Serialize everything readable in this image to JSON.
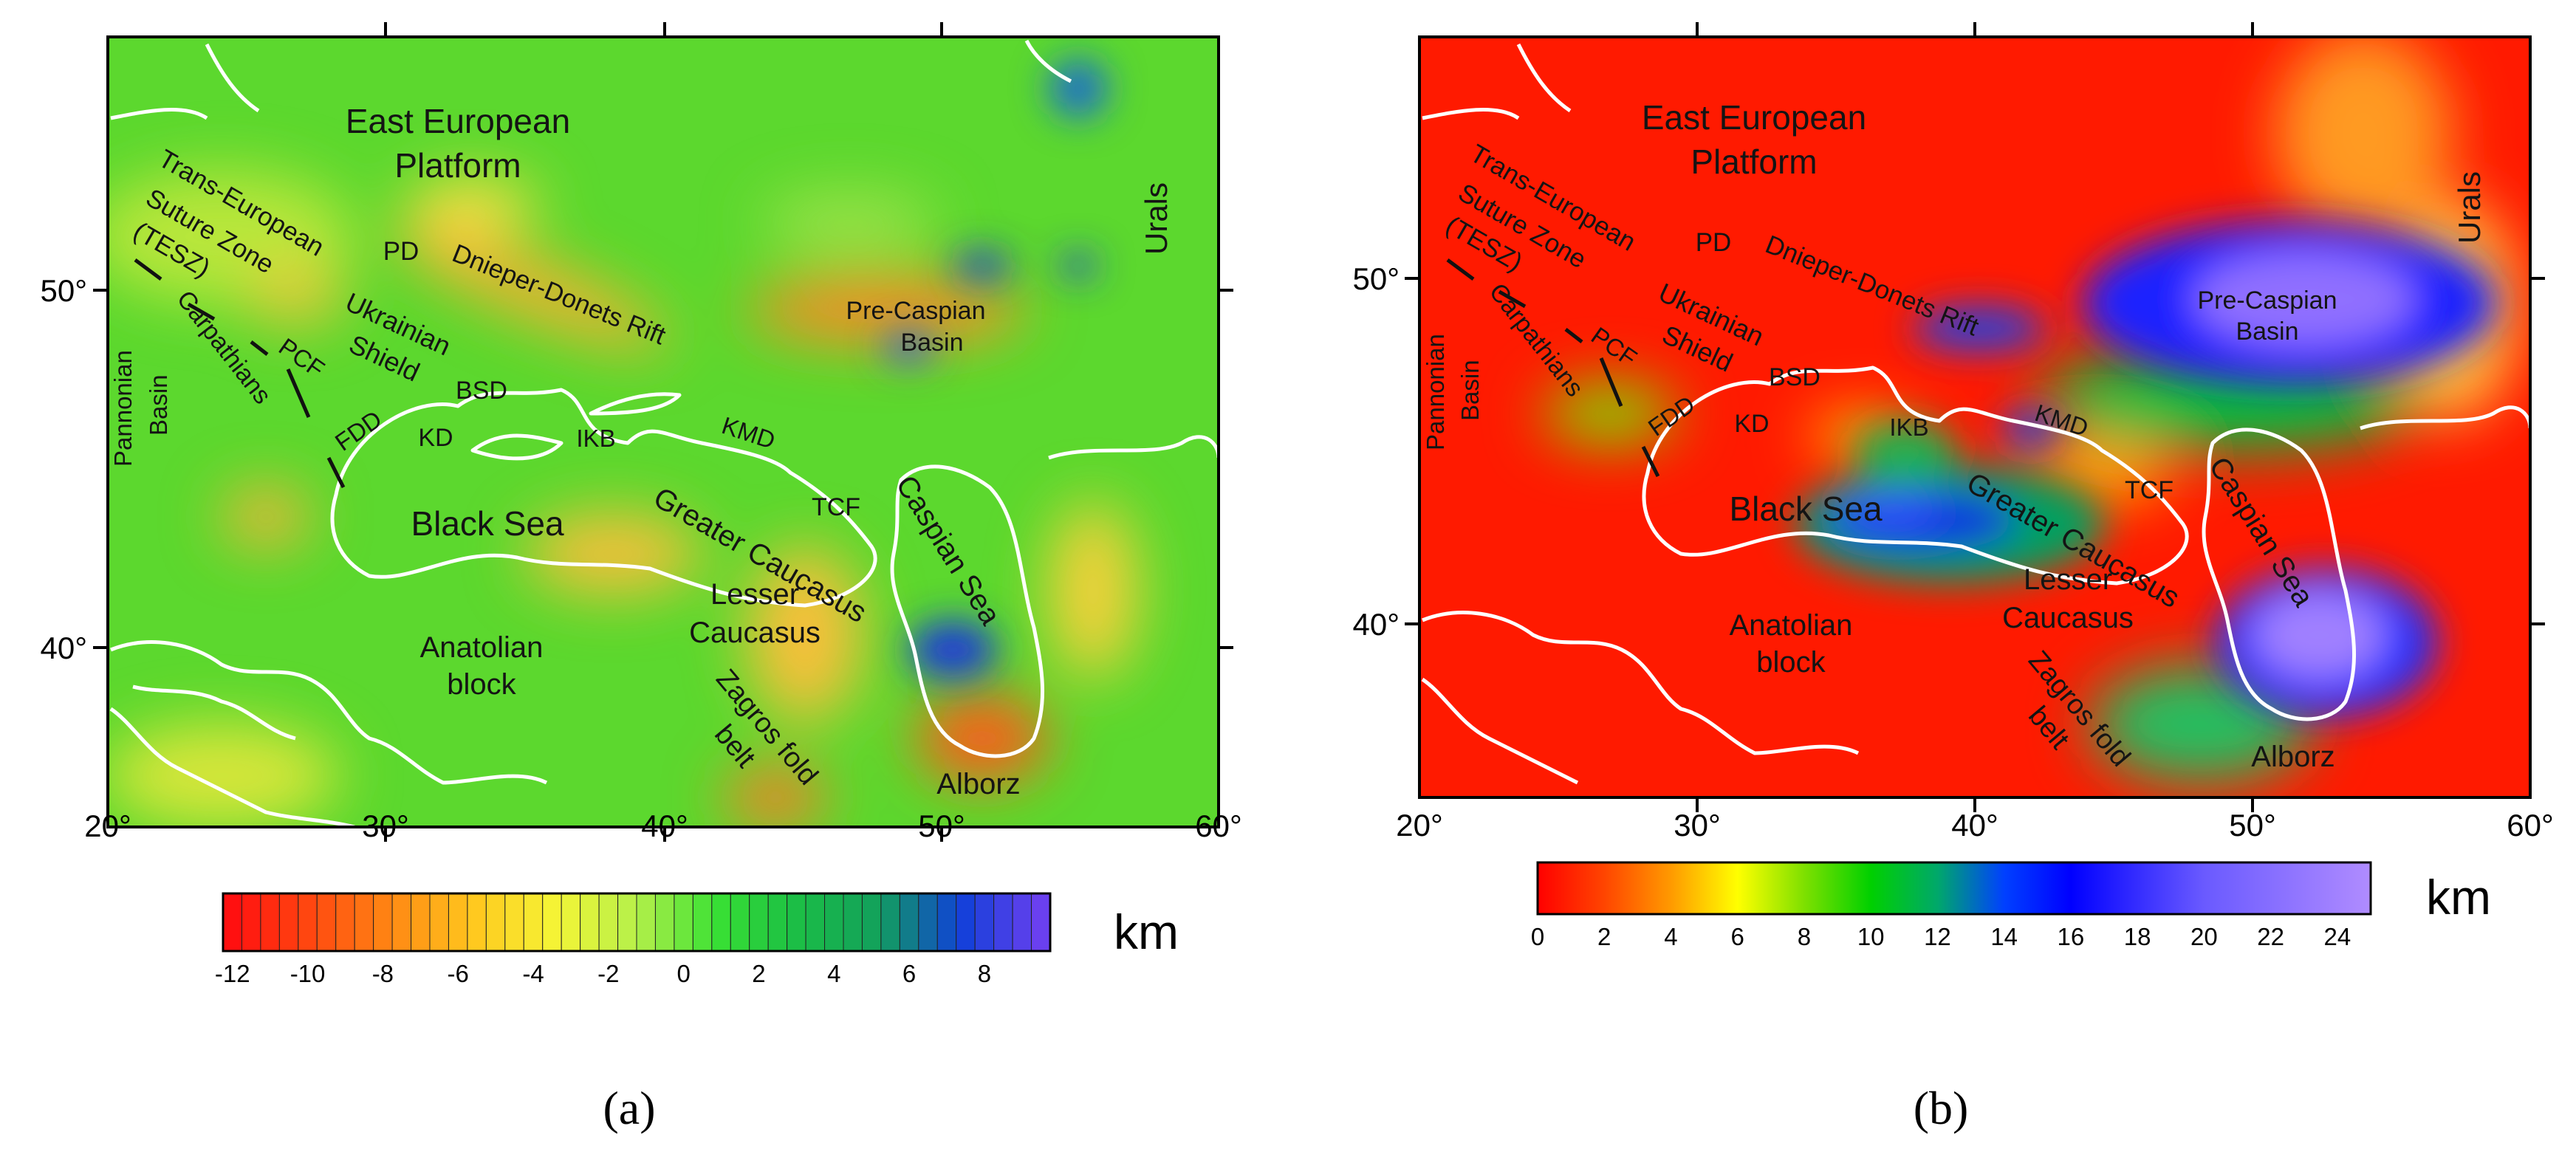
{
  "panels": {
    "a": {
      "caption": "(a)",
      "unit": "km",
      "colorbar_ticks": [
        "-12",
        "-10",
        "-8",
        "-6",
        "-4",
        "-2",
        "0",
        "2",
        "4",
        "6",
        "8"
      ],
      "colorbar_colors": [
        "#ff1010",
        "#ff4a10",
        "#ff8a14",
        "#ffc81e",
        "#f5f536",
        "#b4f04a",
        "#38e034",
        "#1bbd46",
        "#12a05c",
        "#1040d8",
        "#6a40f0"
      ]
    },
    "b": {
      "caption": "(b)",
      "unit": "km",
      "colorbar_ticks": [
        "0",
        "2",
        "4",
        "6",
        "8",
        "10",
        "12",
        "14",
        "16",
        "18",
        "20",
        "22",
        "24"
      ]
    }
  },
  "axes": {
    "x_ticks": [
      "20°",
      "30°",
      "40°",
      "50°",
      "60°"
    ],
    "y_ticks": [
      "50°",
      "40°"
    ]
  },
  "labels": {
    "east_european_1": "East European",
    "east_european_2": "Platform",
    "tesz_1": "Trans-European",
    "tesz_2": "Suture Zone",
    "tesz_3": "(TESZ)",
    "carpathians": "Carpathians",
    "pcf": "PCF",
    "pannonian_1": "Pannonian",
    "pannonian_2": "Basin",
    "pd": "PD",
    "dnieper": "Dnieper-Donets Rift",
    "ukrainian_1": "Ukrainian",
    "ukrainian_2": "Shield",
    "bsd": "BSD",
    "fdd": "FDD",
    "kd": "KD",
    "ikb": "IKB",
    "kmd": "KMD",
    "black_sea": "Black Sea",
    "greater_caucasus": "Greater Caucasus",
    "lesser_caucasus_1": "Lesser",
    "lesser_caucasus_2": "Caucasus",
    "tcf": "TCF",
    "caspian_sea": "Caspian Sea",
    "anatolian_1": "Anatolian",
    "anatolian_2": "block",
    "zagros_1": "Zagros fold",
    "zagros_2": "belt",
    "alborz": "Alborz",
    "pre_caspian_1": "Pre-Caspian",
    "pre_caspian_2": "Basin",
    "urals": "Urals"
  }
}
